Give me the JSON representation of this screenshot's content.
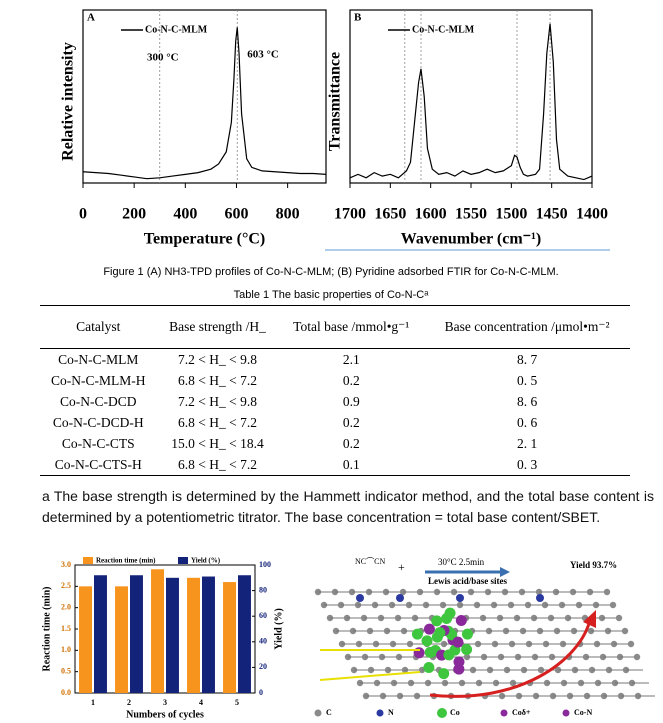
{
  "chart_data": [
    {
      "type": "line",
      "panel": "A",
      "xlabel": "Temperature (°C)",
      "ylabel": "Relative intensity",
      "x": [
        0,
        50,
        100,
        150,
        200,
        250,
        300,
        350,
        400,
        450,
        500,
        530,
        560,
        580,
        590,
        597,
        603,
        610,
        620,
        640,
        660,
        700,
        750,
        800,
        850,
        900,
        950
      ],
      "series": [
        {
          "name": "Co-N-C-MLM",
          "color": "#000000",
          "values": [
            6.5,
            6,
            5.5,
            4.5,
            3.5,
            2.5,
            3,
            4,
            5,
            6,
            8,
            11,
            18,
            35,
            60,
            82,
            90,
            75,
            40,
            14,
            9,
            7,
            6.5,
            6,
            5.5,
            5.5,
            5
          ]
        }
      ],
      "xlim": [
        0,
        950
      ],
      "xticks": [
        0,
        200,
        400,
        600,
        800
      ],
      "ylim": [
        0,
        100
      ],
      "annotations": [
        {
          "text": "300 °C",
          "x": 300
        },
        {
          "text": "603 °C",
          "x": 603
        }
      ]
    },
    {
      "type": "line",
      "panel": "B",
      "xlabel": "Wavenumber (cm⁻¹)",
      "ylabel": "Transmittance",
      "x": [
        1700,
        1690,
        1680,
        1670,
        1660,
        1650,
        1640,
        1630,
        1625,
        1620,
        1615,
        1612,
        1608,
        1604,
        1598,
        1590,
        1580,
        1570,
        1560,
        1550,
        1540,
        1530,
        1520,
        1510,
        1500,
        1496,
        1493,
        1489,
        1485,
        1480,
        1470,
        1465,
        1460,
        1456,
        1452,
        1448,
        1444,
        1440,
        1430,
        1420,
        1410,
        1400
      ],
      "series": [
        {
          "name": "Co-N-C-MLM",
          "color": "#000000",
          "values": [
            3,
            5,
            3,
            6,
            4,
            5,
            3,
            7,
            12,
            35,
            58,
            66,
            50,
            20,
            8,
            5,
            6,
            4,
            7,
            5,
            6,
            8,
            6,
            7,
            10,
            16,
            15,
            9,
            5,
            4,
            5,
            8,
            40,
            75,
            92,
            70,
            25,
            8,
            4,
            3,
            2,
            4
          ]
        }
      ],
      "xlim": [
        1700,
        1400
      ],
      "xticks": [
        1700,
        1650,
        1600,
        1550,
        1500,
        1450,
        1400
      ],
      "ylim": [
        0,
        100
      ],
      "reference_lines": [
        1632,
        1612,
        1493,
        1452
      ]
    },
    {
      "type": "bar",
      "categories": [
        "1",
        "2",
        "3",
        "4",
        "5"
      ],
      "xlabel": "Numbers of cycles",
      "ylabel": "Reaction time (min)",
      "y2label": "Yield (%)",
      "series": [
        {
          "name": "Reaction time (min)",
          "color": "#f7941d",
          "values": [
            2.5,
            2.5,
            2.9,
            2.7,
            2.6
          ]
        },
        {
          "name": "Yield (%)",
          "color": "#14237a",
          "axis": "y2",
          "values": [
            92,
            92,
            90,
            91,
            92
          ]
        }
      ],
      "ylim": [
        0,
        3.0
      ],
      "yticks": [
        {
          "value": 0,
          "label": "0.0"
        },
        0.5,
        {
          "value": 1,
          "label": "1.0"
        },
        1.5,
        {
          "value": 2,
          "label": "2.0"
        },
        2.5,
        {
          "value": 3,
          "label": "3.0"
        }
      ],
      "y2lim": [
        0,
        100
      ],
      "y2ticks": [
        0,
        20,
        40,
        60,
        80,
        100
      ]
    }
  ],
  "caption": "Figure 1 (A) NH3-TPD profiles of Co-N-C-MLM; (B) Pyridine adsorbed FTIR for Co-N-C-MLM.",
  "table": {
    "title": "Table 1 The basic properties of Co-N-Cᵃ",
    "header": [
      "Catalyst",
      "Base strength /H_",
      "Total base /mmol•g⁻¹",
      "Base concentration /μmol•m⁻²"
    ],
    "rows": [
      [
        "Co-N-C-MLM",
        "7.2 < H_ < 9.8",
        "2.1",
        "8. 7"
      ],
      [
        "Co-N-C-MLM-H",
        "6.8 < H_ < 7.2",
        "0.2",
        "0. 5"
      ],
      [
        "Co-N-C-DCD",
        "7.2 < H_ < 9.8",
        "0.9",
        "8. 6"
      ],
      [
        "Co-N-C-DCD-H",
        "6.8 < H_ < 7.2",
        "0.2",
        "0. 6"
      ],
      [
        "Co-N-C-CTS",
        "15.0 < H_ < 18.4",
        "0.2",
        "2. 1"
      ],
      [
        "Co-N-C-CTS-H",
        "6.8 < H_ < 7.2",
        "0.1",
        "0. 3"
      ]
    ]
  },
  "footnote": "a The base strength is determined by the Hammett indicator method, and the total base content is determined by a potentiometric titrator. The base concentration = total base content/SBET.",
  "scheme": {
    "conditions": "30°C  2.5min",
    "sites": "Lewis acid/base sites",
    "yield": "Yield 93.7%",
    "legend": [
      "C",
      "N",
      "Co",
      "Coδ+",
      "Co-N"
    ]
  }
}
